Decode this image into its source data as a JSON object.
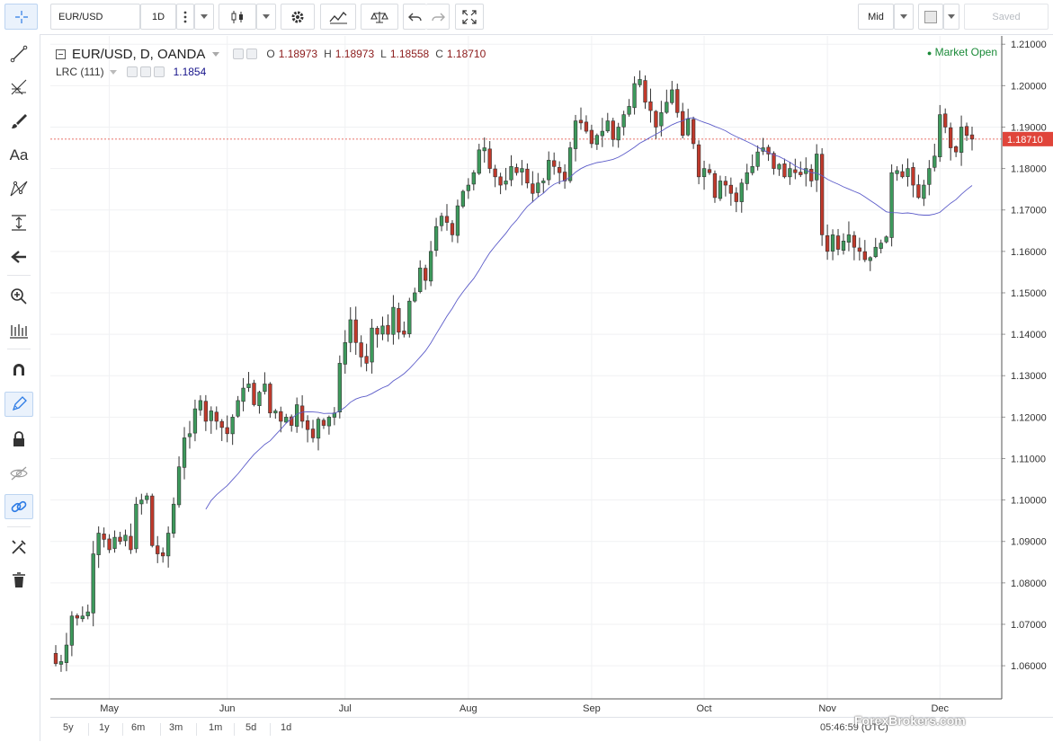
{
  "toolbar": {
    "symbol": "EUR/USD",
    "interval": "1D",
    "price_source": "Mid",
    "saved_label": "Saved"
  },
  "legend": {
    "title": "EUR/USD, D, OANDA",
    "o_label": "O",
    "o_value": "1.18973",
    "h_label": "H",
    "h_value": "1.18973",
    "l_label": "L",
    "l_value": "1.18558",
    "c_label": "C",
    "c_value": "1.18710",
    "indicator": "LRC (111)",
    "indicator_value": "1.1854"
  },
  "status": {
    "market": "Market Open"
  },
  "bottom": {
    "timeframes": [
      "5y",
      "1y",
      "6m",
      "3m",
      "1m",
      "5d",
      "1d"
    ],
    "clock": "05:46:59 (UTC)",
    "watermark": "ForexBrokers.com"
  },
  "colors": {
    "up": "#3d9a5c",
    "down": "#c0392b",
    "lrc_line": "#5c5cc9",
    "last_price_bg": "#e0453a",
    "market_open": "#1a8a38"
  },
  "left_tools": [
    "crosshair-icon",
    "trend-line-icon",
    "fib-icon",
    "brush-icon",
    "text-icon",
    "pattern-icon",
    "measure-icon",
    "arrow-left-icon",
    "zoom-icon",
    "bars-icon",
    "magnet-icon",
    "pencil-icon",
    "lock-icon",
    "eye-off-icon",
    "link-icon",
    "tools-icon",
    "trash-icon"
  ],
  "chart_data": {
    "type": "candlestick",
    "symbol": "EUR/USD",
    "ylim": [
      1.052,
      1.212
    ],
    "yticks": [
      "1.21000",
      "1.20000",
      "1.19000",
      "1.18000",
      "1.17000",
      "1.16000",
      "1.15000",
      "1.14000",
      "1.13000",
      "1.12000",
      "1.11000",
      "1.10000",
      "1.09000",
      "1.08000",
      "1.07000",
      "1.06000"
    ],
    "xticks": [
      "May",
      "Jun",
      "Jul",
      "Aug",
      "Sep",
      "Oct",
      "Nov",
      "Dec"
    ],
    "last_price": "1.18710",
    "closes": [
      1.0605,
      1.061,
      1.065,
      1.072,
      1.0715,
      1.072,
      1.073,
      1.087,
      1.092,
      1.0905,
      1.088,
      1.091,
      1.09,
      1.0915,
      1.088,
      1.099,
      1.1,
      1.101,
      1.089,
      1.087,
      1.0865,
      1.092,
      1.099,
      1.108,
      1.115,
      1.116,
      1.122,
      1.124,
      1.119,
      1.1215,
      1.119,
      1.1175,
      1.116,
      1.12,
      1.124,
      1.127,
      1.128,
      1.123,
      1.126,
      1.128,
      1.121,
      1.1215,
      1.119,
      1.12,
      1.118,
      1.123,
      1.119,
      1.117,
      1.115,
      1.1195,
      1.118,
      1.12,
      1.121,
      1.133,
      1.138,
      1.1435,
      1.138,
      1.1345,
      1.133,
      1.1415,
      1.14,
      1.142,
      1.14,
      1.1465,
      1.1405,
      1.14,
      1.148,
      1.15,
      1.156,
      1.153,
      1.16,
      1.166,
      1.1685,
      1.167,
      1.164,
      1.171,
      1.1745,
      1.176,
      1.179,
      1.1845,
      1.185,
      1.18,
      1.178,
      1.176,
      1.177,
      1.1805,
      1.179,
      1.18,
      1.1765,
      1.174,
      1.1765,
      1.177,
      1.182,
      1.1805,
      1.179,
      1.177,
      1.185,
      1.1915,
      1.191,
      1.189,
      1.186,
      1.188,
      1.189,
      1.1915,
      1.187,
      1.19,
      1.193,
      1.195,
      1.2005,
      1.2015,
      1.196,
      1.194,
      1.19,
      1.1935,
      1.196,
      1.199,
      1.1935,
      1.188,
      1.192,
      1.186,
      1.178,
      1.18,
      1.179,
      1.173,
      1.177,
      1.176,
      1.174,
      1.172,
      1.1765,
      1.179,
      1.1805,
      1.184,
      1.185,
      1.1835,
      1.18,
      1.181,
      1.178,
      1.18,
      1.179,
      1.1785,
      1.18,
      1.177,
      1.1835,
      1.164,
      1.16,
      1.164,
      1.1605,
      1.1625,
      1.164,
      1.161,
      1.16,
      1.158,
      1.1585,
      1.161,
      1.162,
      1.1635,
      1.179,
      1.1795,
      1.178,
      1.18,
      1.176,
      1.173,
      1.176,
      1.18,
      1.183,
      1.193,
      1.19,
      1.185,
      1.184,
      1.19,
      1.188,
      1.1871
    ]
  }
}
